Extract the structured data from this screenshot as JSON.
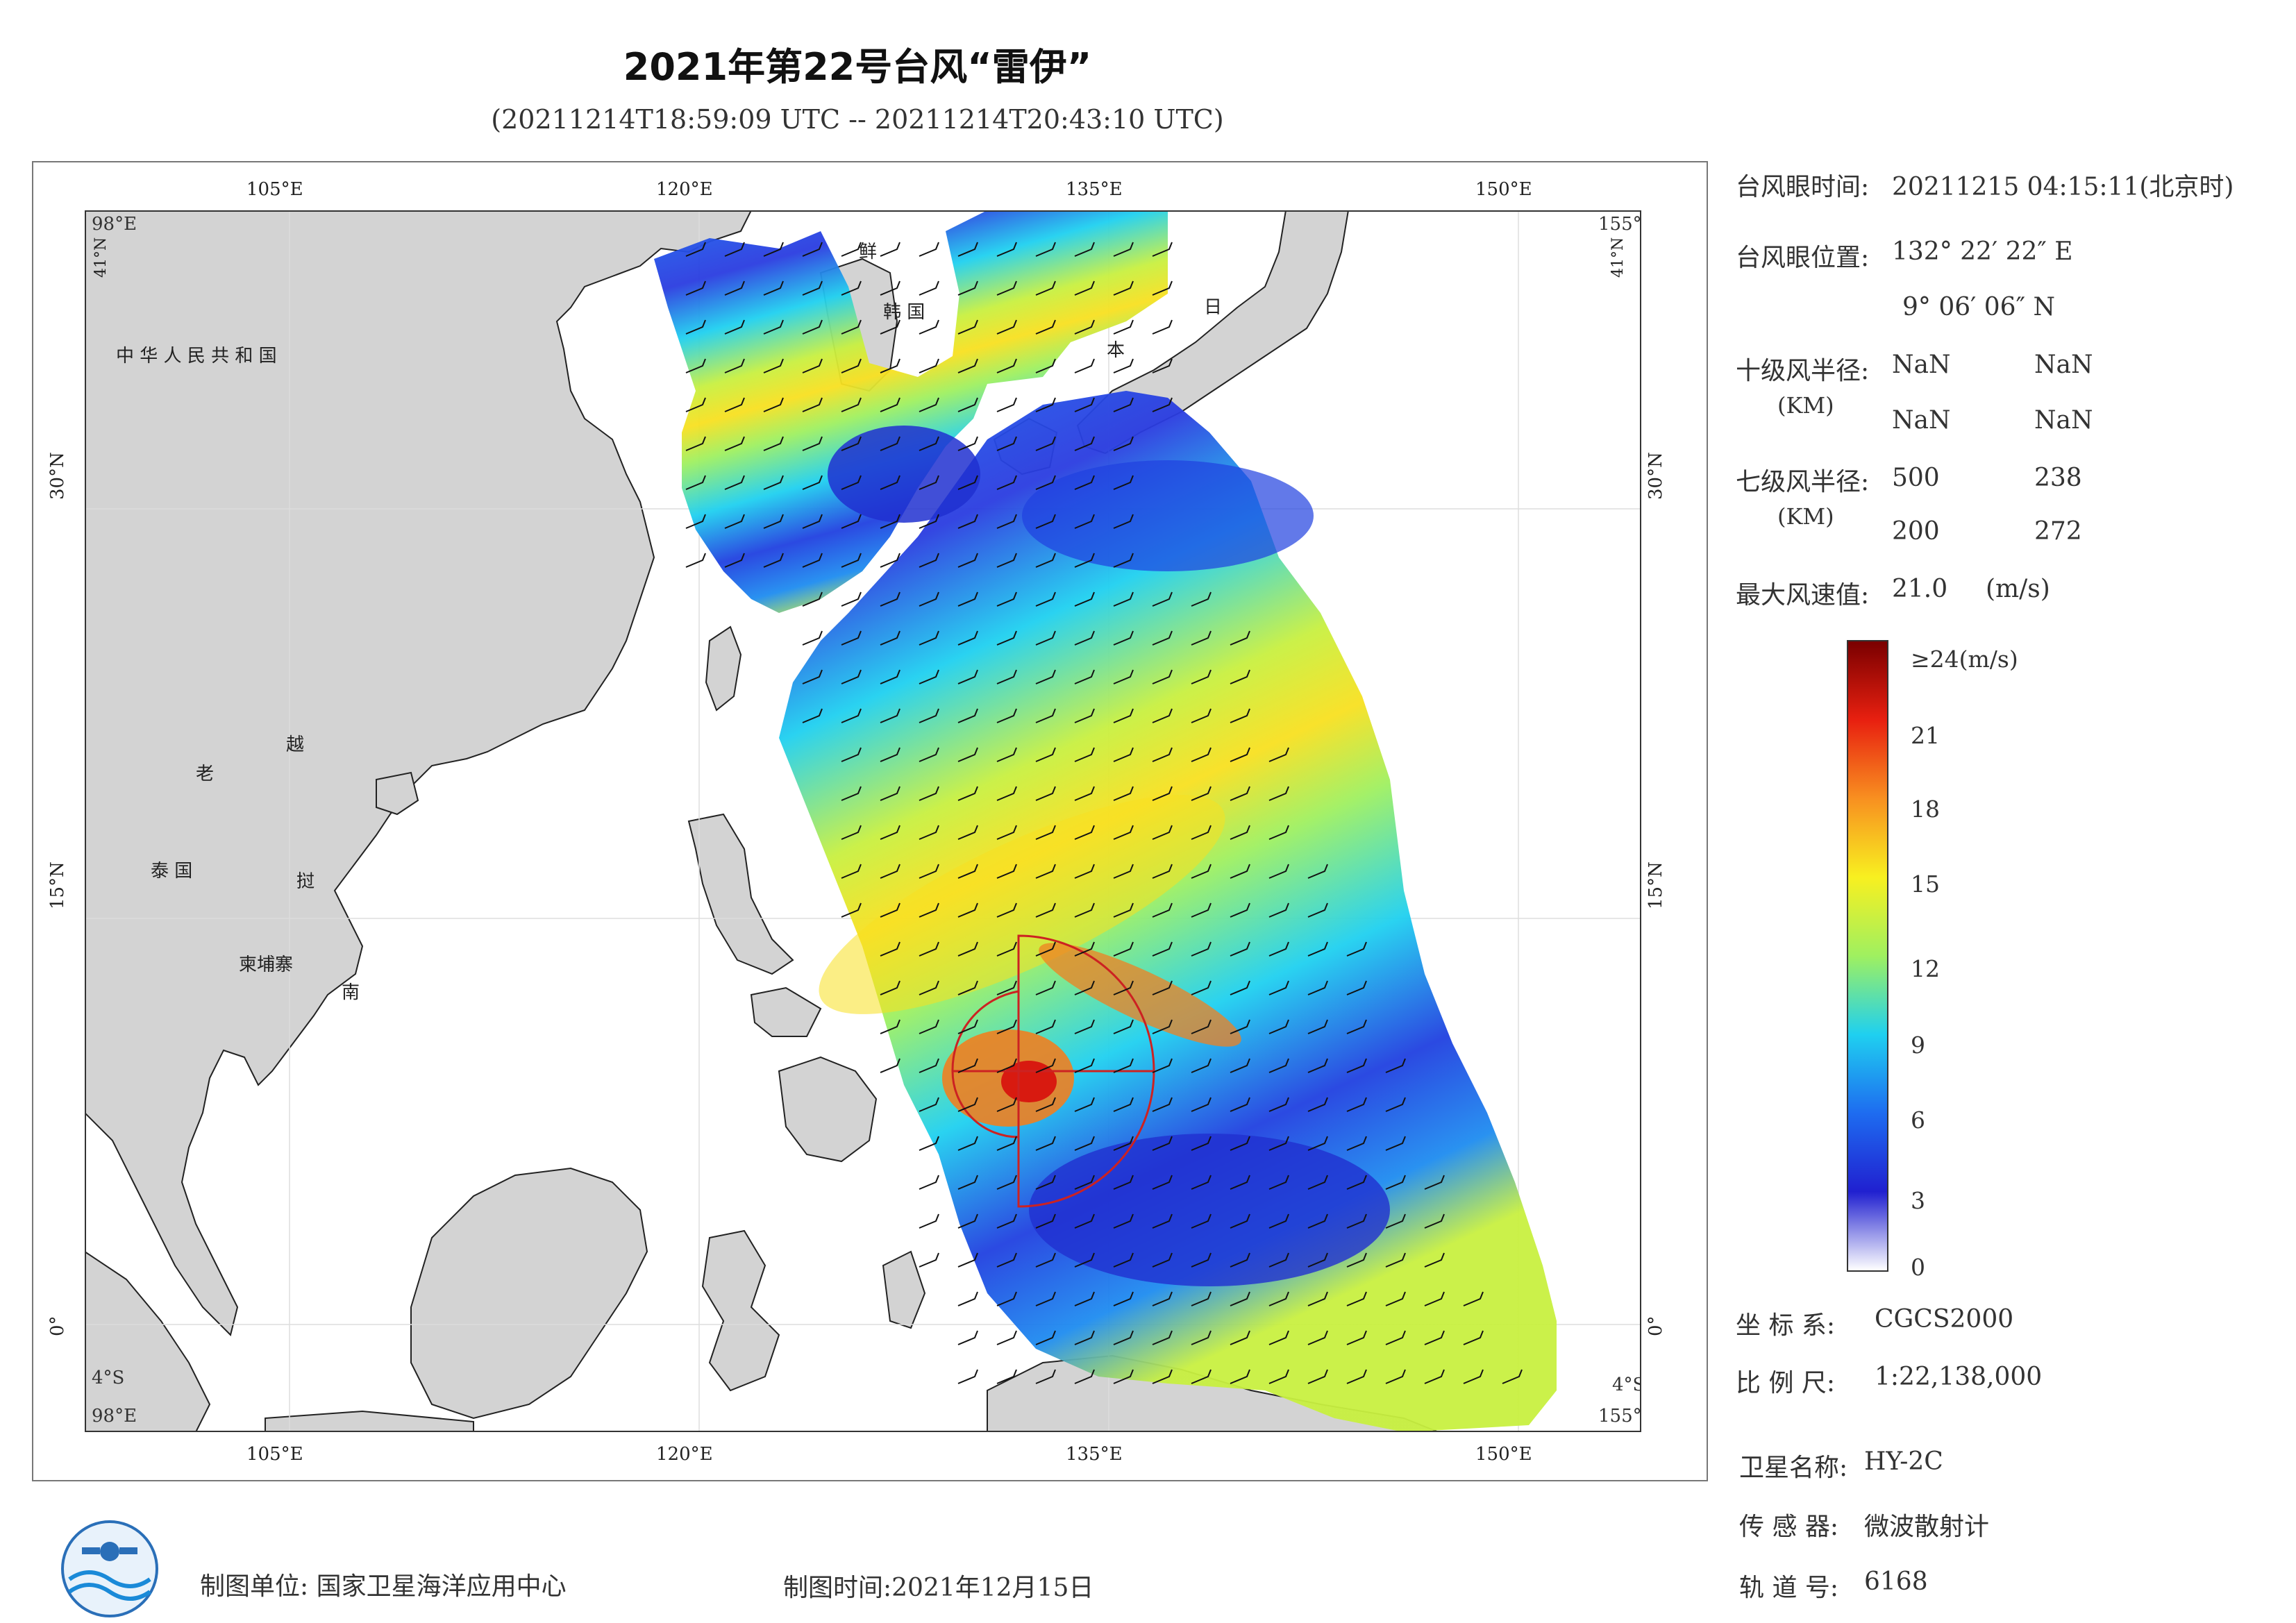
{
  "header": {
    "title": "2021年第22号台风“雷伊”",
    "subtitle": "(20211214T18:59:09 UTC -- 20211214T20:43:10 UTC)"
  },
  "map": {
    "lon_ticks": [
      "105°E",
      "120°E",
      "135°E",
      "150°E"
    ],
    "lat_ticks": [
      "30°N",
      "15°N",
      "0°"
    ],
    "corner_labels": {
      "top_left_lon": "98°E",
      "top_left_lat": "41°N",
      "top_right_lon": "155°E",
      "top_right_lat": "41°N",
      "bottom_left_lon": "98°E",
      "bottom_left_lat": "4°S",
      "bottom_right_lon": "155°E",
      "bottom_right_lat": "4°S"
    },
    "extent": {
      "lon": [
        98,
        155
      ],
      "lat": [
        -4,
        41
      ]
    },
    "country_labels": {
      "china": "中 华 人 民 共 和 国",
      "korea_1": "鲜",
      "korea_2": "韩 国",
      "japan_1": "日",
      "japan_2": "本",
      "laos": "老",
      "vietnam_1": "越",
      "vietnam_2": "南",
      "thailand": "泰 国",
      "cambodia": "柬埔寨",
      "vietnam_mid": "挝"
    },
    "land_color": "#d3d3d3",
    "ocean_color": "#ffffff",
    "typhoon_center": {
      "lon": 132.37,
      "lat": 9.1
    },
    "wind_radii_color": "#cc2222"
  },
  "info_panel": {
    "eye_time_label": "台风眼时间:",
    "eye_time_value": "20211215 04:15:11(北京时)",
    "eye_pos_label": "台风眼位置:",
    "eye_pos_lon": "132° 22′ 22″ E",
    "eye_pos_lat": "9° 06′ 06″ N",
    "r10_label": "十级风半径:",
    "r10_unit": "(KM)",
    "r10_values": [
      "NaN",
      "NaN",
      "NaN",
      "NaN"
    ],
    "r7_label": "七级风半径:",
    "r7_unit": "(KM)",
    "r7_values": [
      "500",
      "238",
      "200",
      "272"
    ],
    "max_wind_label": "最大风速值:",
    "max_wind_value": "21.0",
    "max_wind_unit": "(m/s)"
  },
  "colorbar": {
    "top_label": "≥24(m/s)",
    "ticks": [
      "21",
      "18",
      "15",
      "12",
      "9",
      "6",
      "3",
      "0"
    ],
    "tick_values": [
      21,
      18,
      15,
      12,
      9,
      6,
      3,
      0
    ],
    "range": [
      0,
      24
    ],
    "stops": [
      "#ffffff",
      "#2020d0",
      "#1e6cf0",
      "#1fd0f0",
      "#9ff060",
      "#f8f020",
      "#f89020",
      "#e82010",
      "#7a0000"
    ]
  },
  "meta": {
    "crs_label": "坐 标 系:",
    "crs_value": "CGCS2000",
    "scale_label": "比 例 尺:",
    "scale_value": "1:22,138,000",
    "satellite_label": "卫星名称:",
    "satellite_value": "HY-2C",
    "sensor_label": "传 感 器:",
    "sensor_value": "微波散射计",
    "orbit_label": "轨 道 号:",
    "orbit_value": "6168"
  },
  "footer": {
    "unit": "制图单位: 国家卫星海洋应用中心",
    "time": "制图时间:2021年12月15日"
  }
}
